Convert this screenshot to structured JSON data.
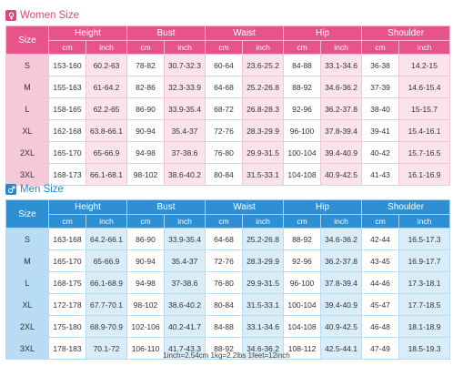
{
  "women": {
    "title": "Women Size",
    "size_label": "Size",
    "groups": [
      "Height",
      "Bust",
      "Waist",
      "Hip",
      "Shoulder"
    ],
    "units": [
      "cm",
      "inch"
    ],
    "rows": [
      {
        "size": "S",
        "values": [
          "153-160",
          "60.2-63",
          "78-82",
          "30.7-32.3",
          "60-64",
          "23.6-25.2",
          "84-88",
          "33.1-34.6",
          "36-38",
          "14.2-15"
        ]
      },
      {
        "size": "M",
        "values": [
          "155-163",
          "61-64.2",
          "82-86",
          "32.3-33.9",
          "64-68",
          "25.2-26.8",
          "88-92",
          "34.6-36.2",
          "37-39",
          "14.6-15.4"
        ]
      },
      {
        "size": "L",
        "values": [
          "158-165",
          "62.2-65",
          "86-90",
          "33.9-35.4",
          "68-72",
          "26.8-28.3",
          "92-96",
          "36.2-37.8",
          "38-40",
          "15-15.7"
        ]
      },
      {
        "size": "XL",
        "values": [
          "162-168",
          "63.8-66.1",
          "90-94",
          "35.4-37",
          "72-76",
          "28.3-29.9",
          "96-100",
          "37.8-39.4",
          "39-41",
          "15.4-16.1"
        ]
      },
      {
        "size": "2XL",
        "values": [
          "165-170",
          "65-66.9",
          "94-98",
          "37-38.6",
          "76-80",
          "29.9-31.5",
          "100-104",
          "39.4-40.9",
          "40-42",
          "15.7-16.5"
        ]
      },
      {
        "size": "3XL",
        "values": [
          "168-173",
          "66.1-68.1",
          "98-102",
          "38.6-40.2",
          "80-84",
          "31.5-33.1",
          "104-108",
          "40.9-42.5",
          "41-43",
          "16.1-16.9"
        ]
      }
    ]
  },
  "men": {
    "title": "Men Size",
    "size_label": "Size",
    "groups": [
      "Height",
      "Bust",
      "Waist",
      "Hip",
      "Shoulder"
    ],
    "units": [
      "cm",
      "inch"
    ],
    "rows": [
      {
        "size": "S",
        "values": [
          "163-168",
          "64.2-66.1",
          "86-90",
          "33.9-35.4",
          "64-68",
          "25.2-26.8",
          "88-92",
          "34.6-36.2",
          "42-44",
          "16.5-17.3"
        ]
      },
      {
        "size": "M",
        "values": [
          "165-170",
          "65-66.9",
          "90-94",
          "35.4-37",
          "72-76",
          "28.3-29.9",
          "92-96",
          "36.2-37.8",
          "43-45",
          "16.9-17.7"
        ]
      },
      {
        "size": "L",
        "values": [
          "168-175",
          "66.1-68.9",
          "94-98",
          "37-38.6",
          "76-80",
          "29.9-31.5",
          "96-100",
          "37.8-39.4",
          "44-46",
          "17.3-18.1"
        ]
      },
      {
        "size": "XL",
        "values": [
          "172-178",
          "67.7-70.1",
          "98-102",
          "38.6-40.2",
          "80-84",
          "31.5-33.1",
          "100-104",
          "39.4-40.9",
          "45-47",
          "17.7-18.5"
        ]
      },
      {
        "size": "2XL",
        "values": [
          "175-180",
          "68.9-70.9",
          "102-106",
          "40.2-41.7",
          "84-88",
          "33.1-34.6",
          "104-108",
          "40.9-42.5",
          "46-48",
          "18.1-18.9"
        ]
      },
      {
        "size": "3XL",
        "values": [
          "178-183",
          "70.1-72",
          "106-110",
          "41.7-43.3",
          "88-92",
          "34.6-36.2",
          "108-112",
          "42.5-44.1",
          "47-49",
          "18.5-19.3"
        ]
      }
    ]
  },
  "footnote": "1inch=2.54cm   1kg=2.2lbs   1feet=12inch",
  "icons": {
    "women": "female-symbol-icon",
    "men": "male-symbol-icon"
  },
  "colors": {
    "women_accent": "#e8538a",
    "men_accent": "#2e8fd2"
  }
}
